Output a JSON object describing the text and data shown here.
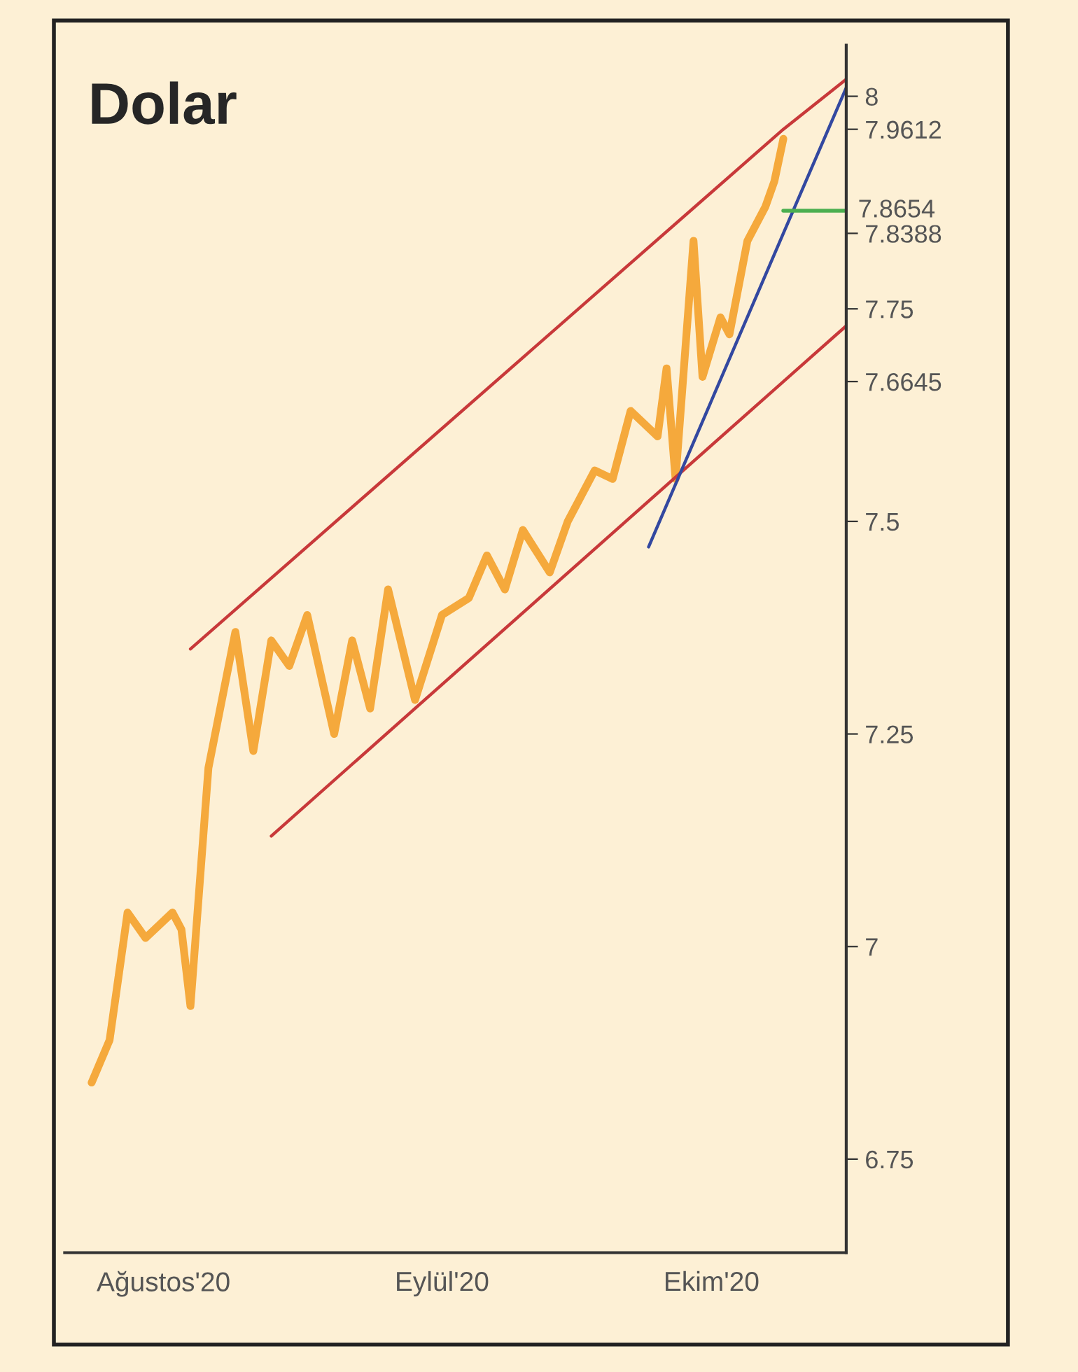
{
  "chart_data": {
    "type": "line",
    "title": "Dolar",
    "xlim": [
      "2020-07-21",
      "2020-10-16"
    ],
    "ylim": [
      6.64,
      8.06
    ],
    "xticks": [
      {
        "value": "2020-08-01",
        "label": "Ağustos'20"
      },
      {
        "value": "2020-09-01",
        "label": "Eylül'20"
      },
      {
        "value": "2020-10-01",
        "label": "Ekim'20"
      }
    ],
    "yticks": [
      6.75,
      7,
      7.25,
      7.5,
      7.6645,
      7.75,
      7.8388,
      7.9612,
      8
    ],
    "grid": false,
    "legend": false,
    "series": [
      {
        "color": "#f5a93c",
        "x": [
          "2020-07-24",
          "2020-07-26",
          "2020-07-28",
          "2020-07-30",
          "2020-08-02",
          "2020-08-03",
          "2020-08-04",
          "2020-08-06",
          "2020-08-09",
          "2020-08-11",
          "2020-08-13",
          "2020-08-15",
          "2020-08-17",
          "2020-08-20",
          "2020-08-22",
          "2020-08-24",
          "2020-08-26",
          "2020-08-29",
          "2020-09-01",
          "2020-09-04",
          "2020-09-06",
          "2020-09-08",
          "2020-09-10",
          "2020-09-13",
          "2020-09-15",
          "2020-09-18",
          "2020-09-20",
          "2020-09-22",
          "2020-09-25",
          "2020-09-26",
          "2020-09-27",
          "2020-09-29",
          "2020-09-30",
          "2020-10-02",
          "2020-10-03",
          "2020-10-05",
          "2020-10-07",
          "2020-10-08",
          "2020-10-09"
        ],
        "values": [
          6.84,
          6.89,
          7.04,
          7.01,
          7.04,
          7.02,
          6.93,
          7.21,
          7.37,
          7.23,
          7.36,
          7.33,
          7.39,
          7.25,
          7.36,
          7.28,
          7.42,
          7.29,
          7.39,
          7.41,
          7.46,
          7.42,
          7.49,
          7.44,
          7.5,
          7.56,
          7.55,
          7.63,
          7.6,
          7.68,
          7.55,
          7.83,
          7.67,
          7.74,
          7.72,
          7.83,
          7.87,
          7.9,
          7.95
        ]
      },
      {
        "color": "#c8393a",
        "x": [
          "2020-08-04",
          "2020-10-09",
          "2020-10-16"
        ],
        "values": [
          7.35,
          7.9612,
          8.02
        ]
      },
      {
        "color": "#c8393a",
        "x": [
          "2020-08-13",
          "2020-10-09",
          "2020-10-16"
        ],
        "values": [
          7.13,
          7.6645,
          7.73
        ]
      },
      {
        "color": "#3348a0",
        "x": [
          "2020-09-24",
          "2020-10-09",
          "2020-10-16"
        ],
        "values": [
          7.47,
          7.8388,
          8.01
        ]
      }
    ],
    "ref_lines": [
      {
        "axis": "y",
        "value": 7.8654,
        "label": "7.8654",
        "color": "#4caf50"
      }
    ]
  }
}
